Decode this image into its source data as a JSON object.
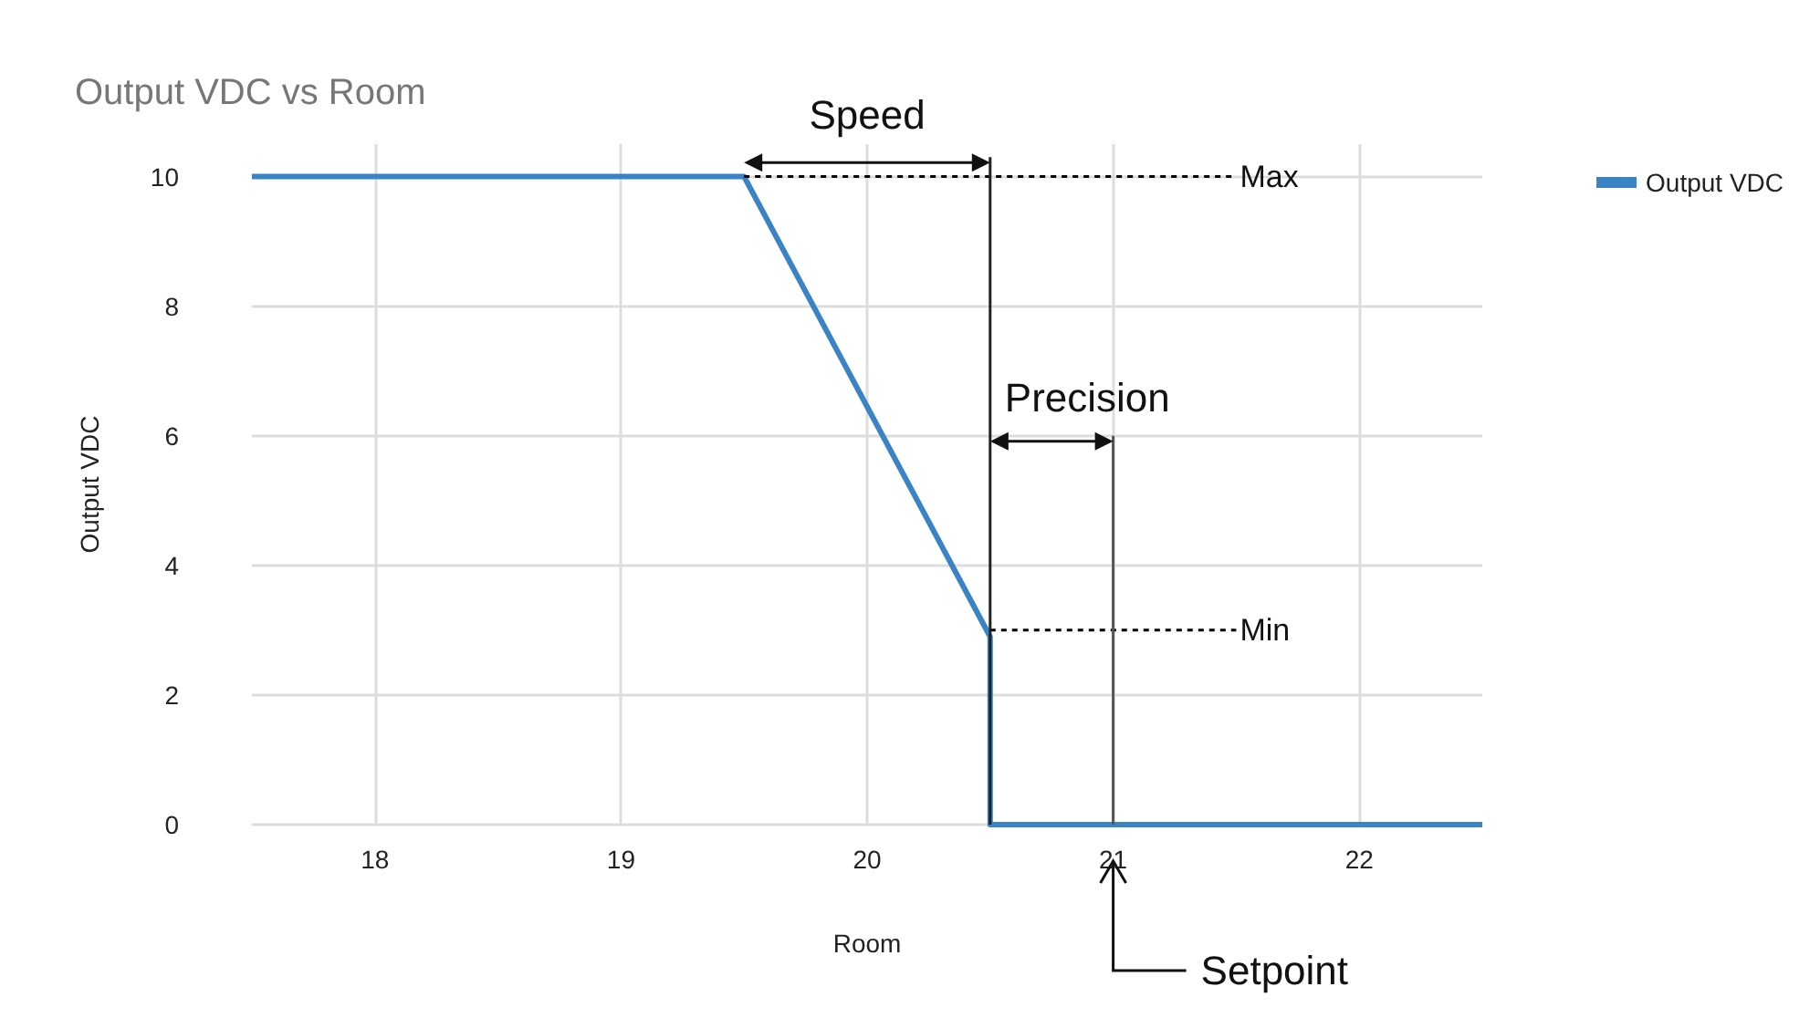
{
  "chart_data": {
    "type": "line",
    "title": "Output VDC vs Room",
    "xlabel": "Room",
    "ylabel": "Output VDC",
    "xlim": [
      17.5,
      22.5
    ],
    "xticks": [
      18,
      19,
      20,
      21,
      22
    ],
    "ylim": [
      0,
      10.5
    ],
    "yticks": [
      0,
      2,
      4,
      6,
      8,
      10
    ],
    "grid": true,
    "legend": "top right",
    "marker": "none",
    "series": [
      {
        "name": "Output VDC",
        "color": "#3a84c6",
        "x": [
          17.5,
          19.5,
          20.5,
          20.5,
          22.5
        ],
        "values": [
          10,
          10,
          2.9,
          0,
          0
        ]
      },
      {
        "color": "#000000",
        "x": [
          19.5,
          21.5
        ],
        "values": [
          10,
          10
        ],
        "line_style": "dotted"
      },
      {
        "color": "#000000",
        "x": [
          20.5,
          21.5
        ],
        "values": [
          3,
          3
        ],
        "line_style": "dotted"
      },
      {
        "color": "#222222",
        "x": [
          20.5,
          20.5
        ],
        "values": [
          0,
          10.3
        ]
      },
      {
        "color": "#555555",
        "x": [
          21,
          21
        ],
        "values": [
          0,
          6
        ]
      }
    ],
    "annotations": [
      "Speed",
      "Precision",
      {
        "text": "Max",
        "x": 21.5,
        "y": 10
      },
      {
        "text": "Min",
        "x": 21.5,
        "y": 3
      },
      "Setpoint"
    ]
  }
}
